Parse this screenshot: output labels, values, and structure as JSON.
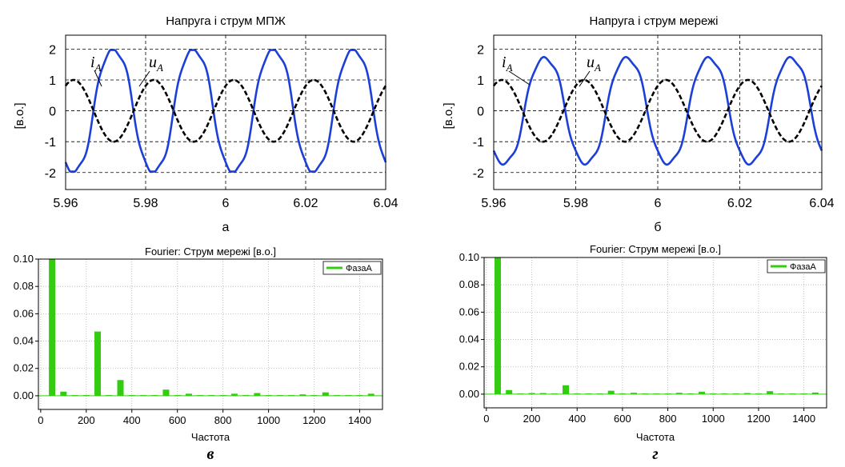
{
  "colors": {
    "current": "#1c3fd8",
    "voltage": "#000000",
    "bar": "#33cc11",
    "dashgrid": "#000000",
    "dotgrid": "#b0b0b0"
  },
  "chart_data": [
    {
      "type": "line",
      "title": "Напруга і струм МПЖ",
      "caption": "а",
      "ylabel": "[в.о.]",
      "xlim": [
        5.96,
        6.04
      ],
      "ylim": [
        -2.55,
        2.45
      ],
      "xticks": [
        "5.96",
        "5.98",
        "6",
        "6.02",
        "6.04"
      ],
      "yticks": [
        "2",
        "1",
        "0",
        "-1",
        "-2"
      ],
      "grid": true,
      "series": [
        {
          "name": "iA",
          "role": "current",
          "amplitude": 1.97,
          "frequency_hz": 50,
          "peak_time": 5.972,
          "flat_top": true,
          "style": "solid"
        },
        {
          "name": "uA",
          "role": "voltage",
          "amplitude": 1.0,
          "frequency_hz": 50,
          "peak_time": 5.962,
          "style": "dashed"
        }
      ],
      "labels": [
        {
          "main": "i",
          "sub": "A"
        },
        {
          "main": "u",
          "sub": "A"
        }
      ]
    },
    {
      "type": "line",
      "title": "Напруга і струм мережі",
      "caption": "б",
      "ylabel": "[в.о.]",
      "xlim": [
        5.96,
        6.04
      ],
      "ylim": [
        -2.55,
        2.45
      ],
      "xticks": [
        "5.96",
        "5.98",
        "6",
        "6.02",
        "6.04"
      ],
      "yticks": [
        "2",
        "1",
        "0",
        "-1",
        "-2"
      ],
      "grid": true,
      "series": [
        {
          "name": "iA",
          "role": "current",
          "amplitude": 1.8,
          "frequency_hz": 50,
          "peak_time": 5.9725,
          "flat_top": false,
          "style": "solid"
        },
        {
          "name": "uA",
          "role": "voltage",
          "amplitude": 1.0,
          "frequency_hz": 50,
          "peak_time": 5.962,
          "style": "dashed"
        }
      ],
      "labels": [
        {
          "main": "i",
          "sub": "A"
        },
        {
          "main": "u",
          "sub": "A"
        }
      ]
    },
    {
      "type": "bar",
      "title": "Fourier: Струм мережі [в.о.]",
      "caption": "в",
      "xlabel": "Частота",
      "xlim": [
        -10,
        1500
      ],
      "ylim": [
        -0.01,
        0.1
      ],
      "xticks": [
        "0",
        "200",
        "400",
        "600",
        "800",
        "1000",
        "1200",
        "1400"
      ],
      "yticks": [
        "0.10",
        "0.08",
        "0.06",
        "0.04",
        "0.02",
        "0.00"
      ],
      "legend": "ФазаА",
      "legend_position": "top-right",
      "grid": "dotted",
      "x": [
        50,
        100,
        150,
        200,
        250,
        300,
        350,
        400,
        450,
        500,
        550,
        600,
        650,
        700,
        750,
        800,
        850,
        900,
        950,
        1000,
        1050,
        1100,
        1150,
        1200,
        1250,
        1300,
        1350,
        1400,
        1450
      ],
      "values": [
        0.1,
        0.003,
        0.0005,
        0.0005,
        0.047,
        0.0005,
        0.0115,
        0.0005,
        0.0005,
        0.0005,
        0.0045,
        0.0005,
        0.0015,
        0.0005,
        0.0005,
        0.0005,
        0.0015,
        0.0005,
        0.002,
        0.0005,
        0.0005,
        0.0005,
        0.001,
        0.0005,
        0.0025,
        0.0005,
        0.0005,
        0.0005,
        0.0015
      ]
    },
    {
      "type": "bar",
      "title": "Fourier: Струм мережі [в.о.]",
      "caption": "г",
      "xlabel": "Частота",
      "xlim": [
        -10,
        1500
      ],
      "ylim": [
        -0.01,
        0.1
      ],
      "xticks": [
        "0",
        "200",
        "400",
        "600",
        "800",
        "1000",
        "1200",
        "1400"
      ],
      "yticks": [
        "0.10",
        "0.08",
        "0.06",
        "0.04",
        "0.02",
        "0.00"
      ],
      "legend": "ФазаА",
      "legend_position": "top-right",
      "grid": "dotted",
      "x": [
        50,
        100,
        150,
        200,
        250,
        300,
        350,
        400,
        450,
        500,
        550,
        600,
        650,
        700,
        750,
        800,
        850,
        900,
        950,
        1000,
        1050,
        1100,
        1150,
        1200,
        1250,
        1300,
        1350,
        1400,
        1450
      ],
      "values": [
        0.1,
        0.003,
        0.0005,
        0.0008,
        0.0008,
        0.0005,
        0.0065,
        0.0005,
        0.0005,
        0.0005,
        0.0025,
        0.0005,
        0.001,
        0.0005,
        0.0005,
        0.0005,
        0.001,
        0.0005,
        0.0018,
        0.0005,
        0.0005,
        0.0005,
        0.0008,
        0.0005,
        0.0022,
        0.0005,
        0.0005,
        0.0005,
        0.0012
      ]
    }
  ]
}
